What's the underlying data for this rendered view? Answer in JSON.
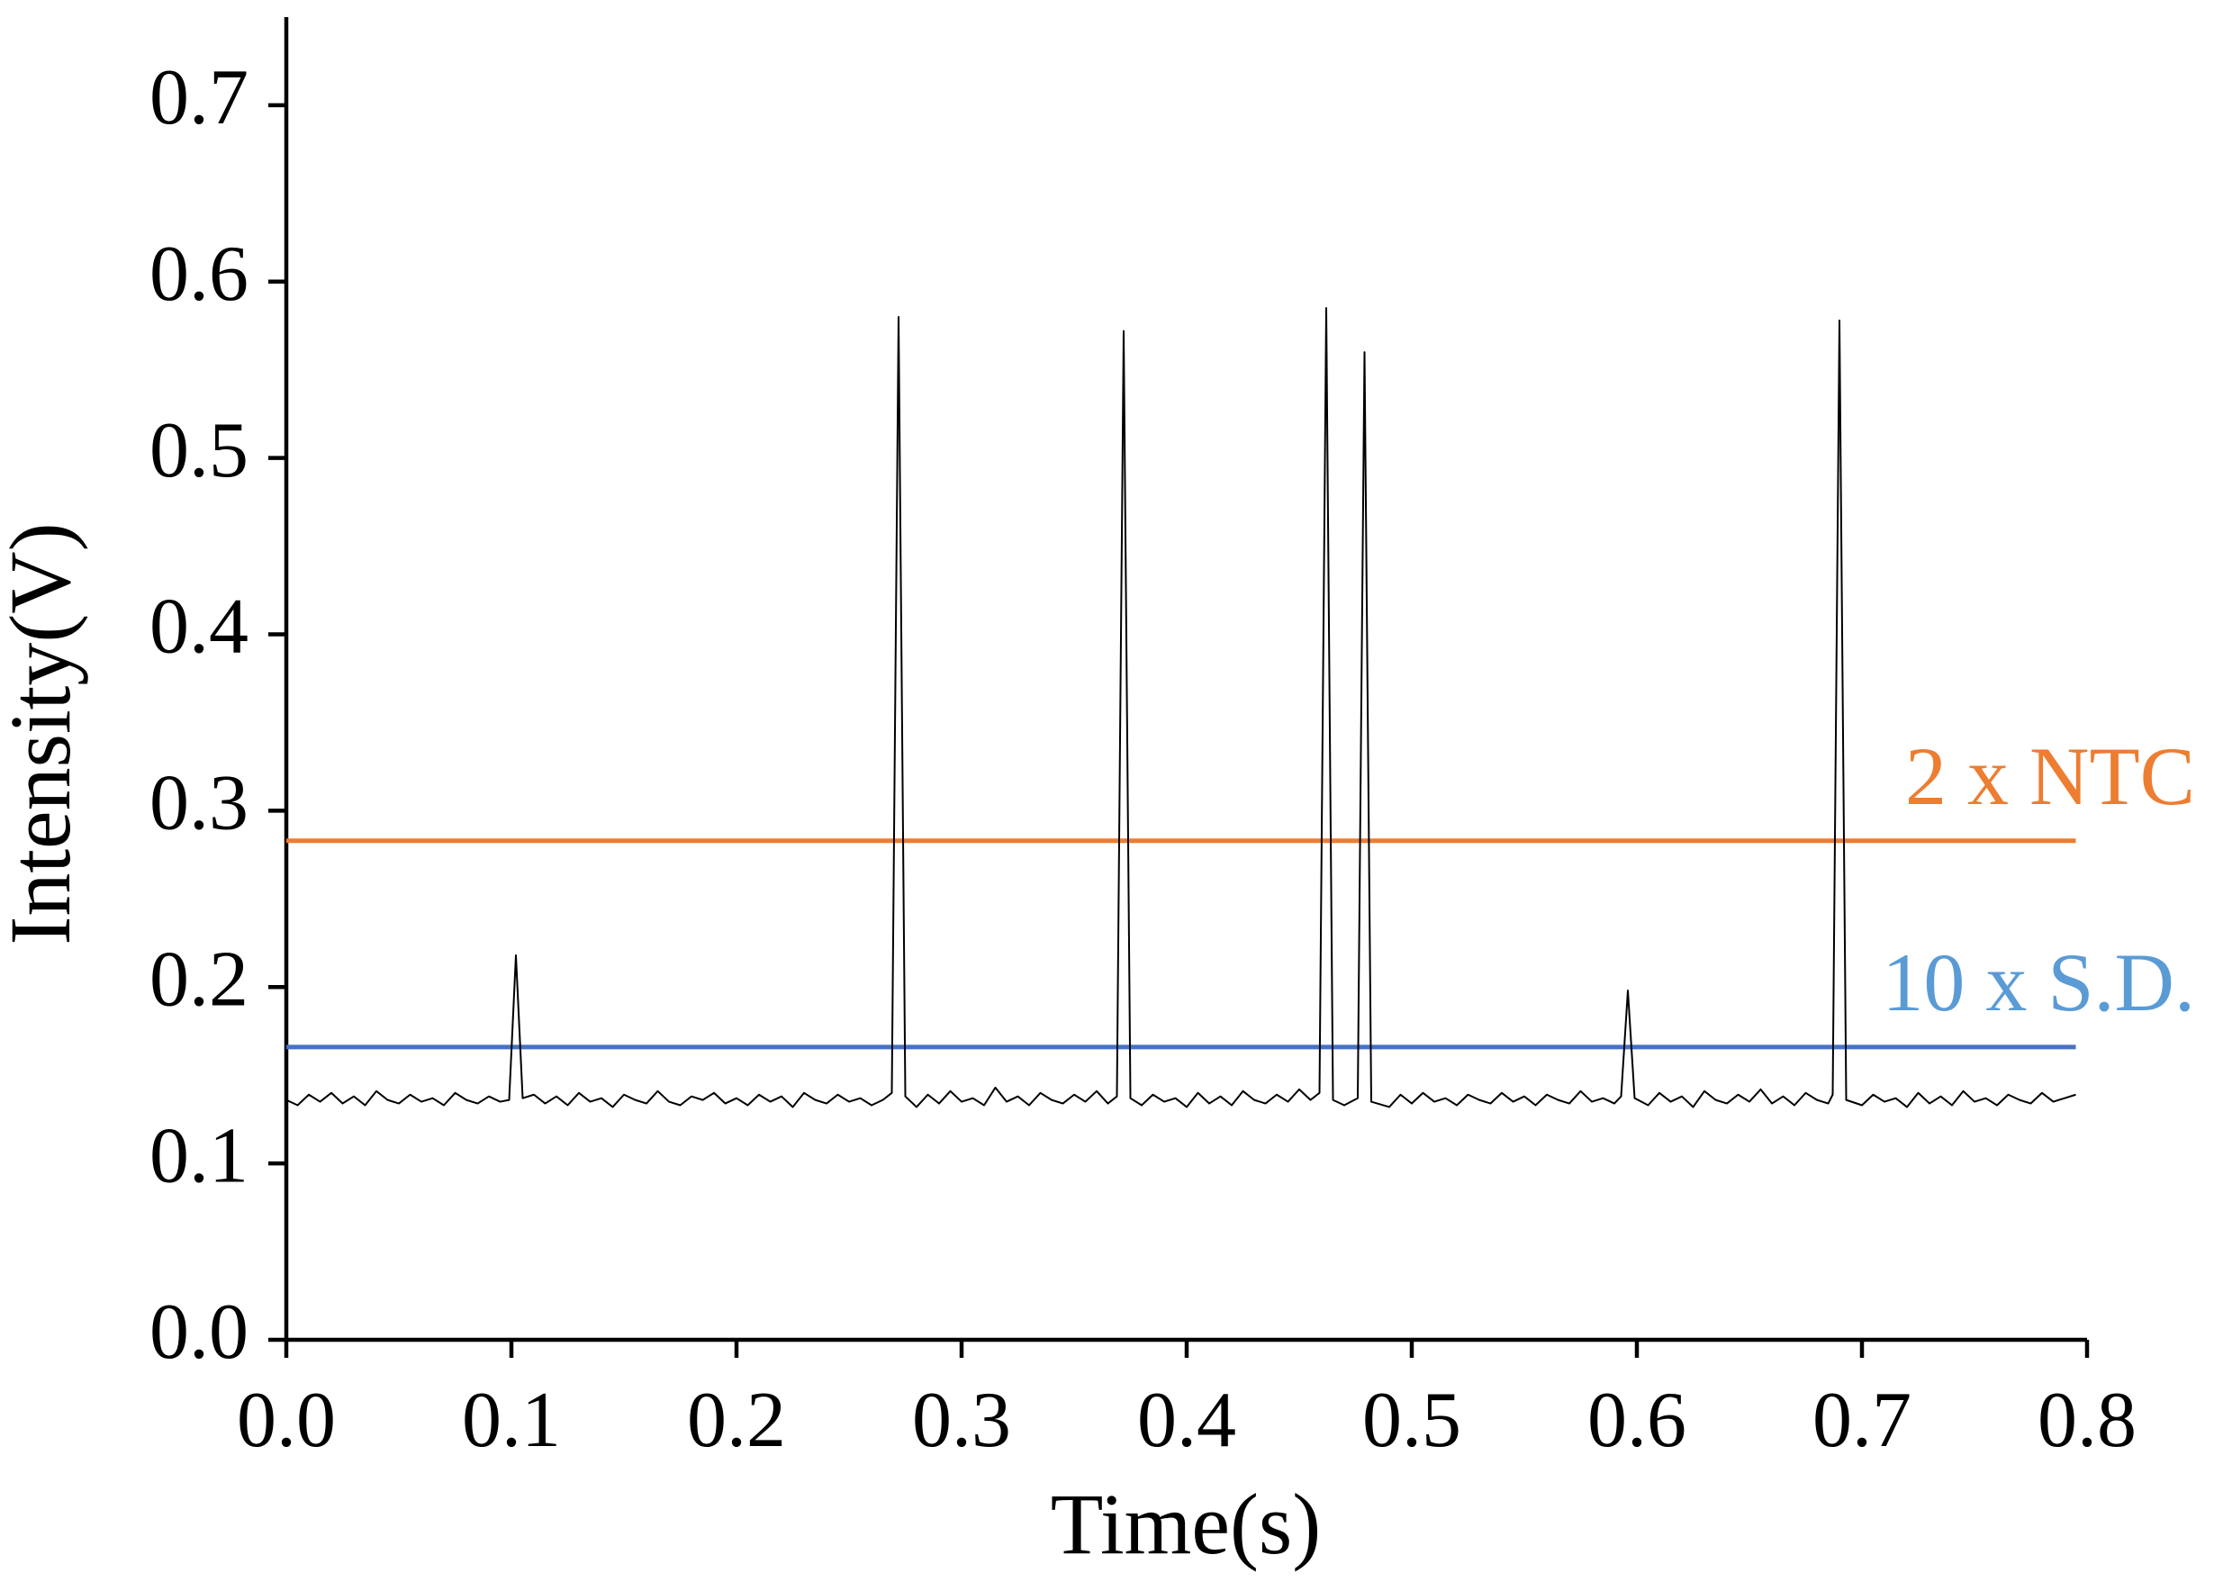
{
  "chart_data": {
    "type": "line",
    "x_label": "Time(s)",
    "y_label": "Intensity(V)",
    "xlim": [
      0,
      0.8
    ],
    "ylim": [
      0,
      0.75
    ],
    "xticks": [
      {
        "value": 0,
        "label": "0.0"
      },
      {
        "value": 0.1,
        "label": "0.1"
      },
      {
        "value": 0.2,
        "label": "0.2"
      },
      {
        "value": 0.3,
        "label": "0.3"
      },
      {
        "value": 0.4,
        "label": "0.4"
      },
      {
        "value": 0.5,
        "label": "0.5"
      },
      {
        "value": 0.6,
        "label": "0.6"
      },
      {
        "value": 0.7,
        "label": "0.7"
      },
      {
        "value": 0.8,
        "label": "0.8"
      }
    ],
    "yticks": [
      {
        "value": 0,
        "label": "0.0"
      },
      {
        "value": 0.1,
        "label": "0.1"
      },
      {
        "value": 0.2,
        "label": "0.2"
      },
      {
        "value": 0.3,
        "label": "0.3"
      },
      {
        "value": 0.4,
        "label": "0.4"
      },
      {
        "value": 0.5,
        "label": "0.5"
      },
      {
        "value": 0.6,
        "label": "0.6"
      },
      {
        "value": 0.7,
        "label": "0.7"
      }
    ],
    "x": [
      0,
      0.005,
      0.01,
      0.015,
      0.02,
      0.025,
      0.03,
      0.035,
      0.04,
      0.045,
      0.05,
      0.055,
      0.06,
      0.065,
      0.07,
      0.075,
      0.08,
      0.085,
      0.09,
      0.095,
      0.099,
      0.102,
      0.105,
      0.11,
      0.115,
      0.12,
      0.125,
      0.13,
      0.135,
      0.14,
      0.145,
      0.15,
      0.155,
      0.16,
      0.165,
      0.17,
      0.175,
      0.18,
      0.185,
      0.19,
      0.195,
      0.2,
      0.205,
      0.21,
      0.215,
      0.22,
      0.225,
      0.23,
      0.235,
      0.24,
      0.245,
      0.25,
      0.255,
      0.26,
      0.265,
      0.269,
      0.272,
      0.275,
      0.28,
      0.285,
      0.29,
      0.295,
      0.3,
      0.305,
      0.31,
      0.315,
      0.32,
      0.325,
      0.33,
      0.335,
      0.34,
      0.345,
      0.35,
      0.355,
      0.36,
      0.365,
      0.369,
      0.372,
      0.375,
      0.38,
      0.385,
      0.39,
      0.395,
      0.4,
      0.405,
      0.41,
      0.415,
      0.42,
      0.425,
      0.43,
      0.435,
      0.44,
      0.445,
      0.45,
      0.455,
      0.459,
      0.462,
      0.465,
      0.47,
      0.476,
      0.479,
      0.482,
      0.49,
      0.495,
      0.5,
      0.505,
      0.51,
      0.515,
      0.52,
      0.525,
      0.53,
      0.535,
      0.54,
      0.545,
      0.55,
      0.555,
      0.56,
      0.565,
      0.57,
      0.575,
      0.58,
      0.585,
      0.59,
      0.593,
      0.596,
      0.599,
      0.605,
      0.61,
      0.615,
      0.62,
      0.625,
      0.63,
      0.635,
      0.64,
      0.645,
      0.65,
      0.655,
      0.66,
      0.665,
      0.67,
      0.675,
      0.68,
      0.685,
      0.687,
      0.69,
      0.693,
      0.7,
      0.705,
      0.71,
      0.715,
      0.72,
      0.725,
      0.73,
      0.735,
      0.74,
      0.745,
      0.75,
      0.755,
      0.76,
      0.765,
      0.77,
      0.775,
      0.78,
      0.785,
      0.79,
      0.795
    ],
    "series": [
      {
        "color": "#000000",
        "values": [
          0.136,
          0.133,
          0.139,
          0.135,
          0.14,
          0.134,
          0.138,
          0.133,
          0.141,
          0.136,
          0.134,
          0.139,
          0.135,
          0.137,
          0.133,
          0.14,
          0.136,
          0.134,
          0.138,
          0.135,
          0.136,
          0.218,
          0.137,
          0.139,
          0.134,
          0.138,
          0.133,
          0.14,
          0.135,
          0.137,
          0.132,
          0.139,
          0.136,
          0.134,
          0.141,
          0.135,
          0.133,
          0.138,
          0.136,
          0.14,
          0.134,
          0.137,
          0.133,
          0.139,
          0.135,
          0.138,
          0.132,
          0.14,
          0.136,
          0.134,
          0.139,
          0.135,
          0.137,
          0.133,
          0.136,
          0.14,
          0.58,
          0.138,
          0.132,
          0.139,
          0.134,
          0.141,
          0.135,
          0.137,
          0.133,
          0.143,
          0.135,
          0.138,
          0.133,
          0.14,
          0.136,
          0.134,
          0.139,
          0.135,
          0.141,
          0.134,
          0.138,
          0.572,
          0.137,
          0.133,
          0.139,
          0.135,
          0.137,
          0.132,
          0.14,
          0.134,
          0.138,
          0.133,
          0.141,
          0.136,
          0.134,
          0.139,
          0.135,
          0.142,
          0.136,
          0.14,
          0.585,
          0.136,
          0.133,
          0.137,
          0.56,
          0.135,
          0.132,
          0.139,
          0.134,
          0.14,
          0.135,
          0.137,
          0.133,
          0.139,
          0.136,
          0.134,
          0.14,
          0.135,
          0.138,
          0.133,
          0.139,
          0.136,
          0.134,
          0.141,
          0.135,
          0.137,
          0.134,
          0.138,
          0.198,
          0.137,
          0.133,
          0.14,
          0.135,
          0.138,
          0.132,
          0.141,
          0.136,
          0.134,
          0.139,
          0.135,
          0.142,
          0.134,
          0.138,
          0.133,
          0.14,
          0.136,
          0.134,
          0.139,
          0.578,
          0.136,
          0.133,
          0.139,
          0.135,
          0.137,
          0.132,
          0.14,
          0.134,
          0.138,
          0.133,
          0.141,
          0.135,
          0.137,
          0.133,
          0.139,
          0.136,
          0.134,
          0.14,
          0.135,
          0.137,
          0.139
        ]
      }
    ],
    "reference_lines": [
      {
        "label": "2 x NTC",
        "value": 0.283,
        "xlim": [
          0,
          0.795
        ],
        "color": "#ed7d31",
        "label_color": "#ed7d31"
      },
      {
        "label": "10 x S.D.",
        "value": 0.166,
        "xlim": [
          0,
          0.795
        ],
        "color": "#4472c4",
        "label_color": "#5b9bd5"
      }
    ]
  }
}
